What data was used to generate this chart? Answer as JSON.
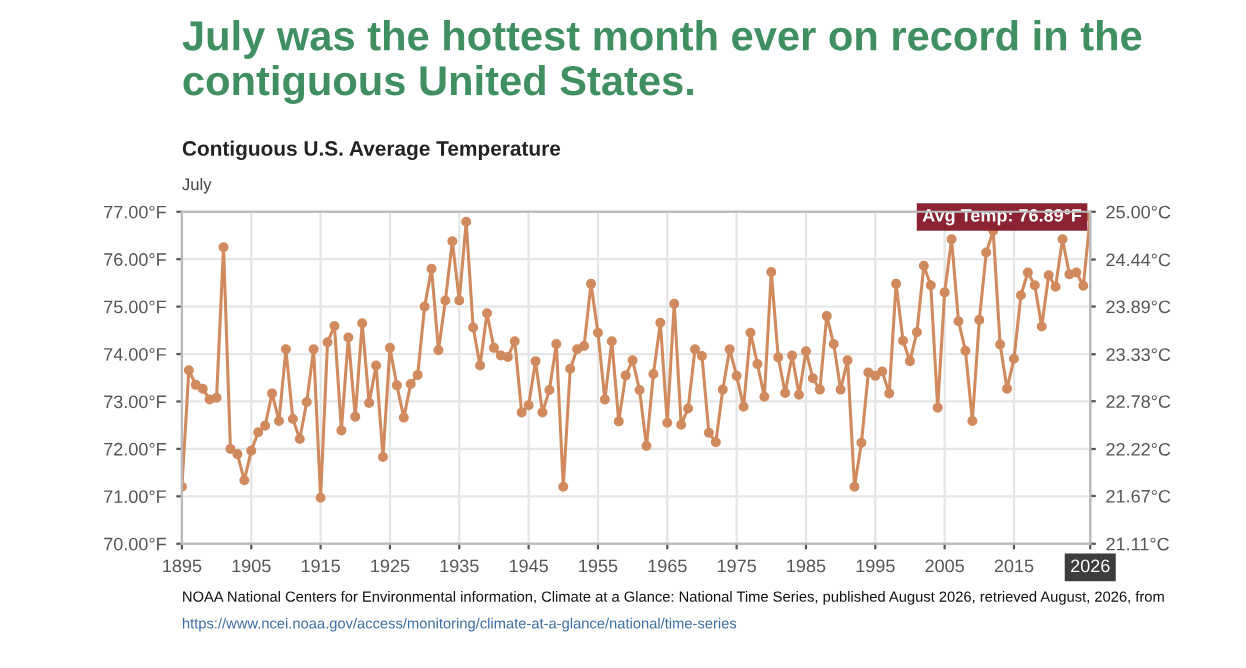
{
  "chart_data": {
    "type": "line",
    "title": "July was the hottest month ever on record in the contiguous United States.",
    "subtitle": "Contiguous U.S. Average Temperature",
    "x": [
      1895,
      1896,
      1897,
      1898,
      1899,
      1900,
      1901,
      1902,
      1903,
      1904,
      1905,
      1906,
      1907,
      1908,
      1909,
      1910,
      1911,
      1912,
      1913,
      1914,
      1915,
      1916,
      1917,
      1918,
      1919,
      1920,
      1921,
      1922,
      1923,
      1924,
      1925,
      1926,
      1927,
      1928,
      1929,
      1930,
      1931,
      1932,
      1933,
      1934,
      1935,
      1936,
      1937,
      1938,
      1939,
      1940,
      1941,
      1942,
      1943,
      1944,
      1945,
      1946,
      1947,
      1948,
      1949,
      1950,
      1951,
      1952,
      1953,
      1954,
      1955,
      1956,
      1957,
      1958,
      1959,
      1960,
      1961,
      1962,
      1963,
      1964,
      1965,
      1966,
      1967,
      1968,
      1969,
      1970,
      1971,
      1972,
      1973,
      1974,
      1975,
      1976,
      1977,
      1978,
      1979,
      1980,
      1981,
      1982,
      1983,
      1984,
      1985,
      1986,
      1987,
      1988,
      1989,
      1990,
      1991,
      1992,
      1993,
      1994,
      1995,
      1996,
      1997,
      1998,
      1999,
      2000,
      2001,
      2002,
      2003,
      2004,
      2005,
      2006,
      2007,
      2008,
      2009,
      2010,
      2011,
      2012,
      2013,
      2014,
      2015,
      2016,
      2017,
      2018,
      2019,
      2020,
      2021,
      2022,
      2023,
      2024,
      2025,
      2026
    ],
    "series": [
      {
        "color": "#d08a5e",
        "values": [
          71.2,
          73.66,
          73.35,
          73.27,
          73.04,
          73.08,
          76.25,
          72.0,
          71.89,
          71.34,
          71.96,
          72.35,
          72.49,
          73.17,
          72.59,
          74.1,
          72.63,
          72.21,
          72.99,
          74.1,
          70.97,
          74.25,
          74.59,
          72.39,
          74.35,
          72.68,
          74.65,
          72.97,
          73.76,
          71.83,
          74.13,
          73.34,
          72.66,
          73.37,
          73.56,
          75.0,
          75.8,
          74.08,
          75.13,
          76.38,
          75.13,
          76.79,
          74.56,
          73.76,
          74.86,
          74.13,
          73.97,
          73.94,
          74.27,
          72.77,
          72.92,
          73.85,
          72.77,
          73.24,
          74.21,
          71.2,
          73.69,
          74.1,
          74.17,
          75.48,
          74.45,
          73.04,
          74.27,
          72.58,
          73.55,
          73.87,
          73.24,
          72.06,
          73.58,
          74.66,
          72.55,
          75.06,
          72.51,
          72.85,
          74.1,
          73.96,
          72.34,
          72.14,
          73.25,
          74.1,
          73.54,
          72.89,
          74.45,
          73.79,
          73.1,
          75.73,
          73.93,
          73.18,
          73.97,
          73.14,
          74.06,
          73.49,
          73.25,
          74.8,
          74.21,
          73.25,
          73.87,
          71.2,
          72.13,
          73.61,
          73.54,
          73.63,
          73.17,
          75.48,
          74.28,
          73.85,
          74.46,
          75.86,
          75.45,
          72.87,
          75.3,
          76.42,
          74.69,
          74.07,
          72.59,
          74.72,
          76.14,
          76.6,
          74.2,
          73.27,
          73.9,
          75.24,
          75.72,
          75.45,
          74.58,
          75.66,
          75.42,
          76.42,
          75.68,
          75.72,
          75.44,
          76.89
        ]
      }
    ],
    "xlim": [
      1895,
      2026
    ],
    "xticks": [
      1895,
      1905,
      1915,
      1925,
      1935,
      1945,
      1955,
      1965,
      1975,
      1985,
      1995,
      2005,
      2015,
      2026
    ],
    "ylim": [
      70,
      77
    ],
    "yticks": [
      {
        "value": 70,
        "label": "70.00°F"
      },
      {
        "value": 71,
        "label": "71.00°F"
      },
      {
        "value": 72,
        "label": "72.00°F"
      },
      {
        "value": 73,
        "label": "73.00°F"
      },
      {
        "value": 74,
        "label": "74.00°F"
      },
      {
        "value": 75,
        "label": "75.00°F"
      },
      {
        "value": 76,
        "label": "76.00°F"
      },
      {
        "value": 77,
        "label": "77.00°F"
      }
    ],
    "y2lim": [
      21.11,
      25.0
    ],
    "y2ticks": [
      {
        "value": 21.11,
        "label": "21.11°C"
      },
      {
        "value": 21.67,
        "label": "21.67°C"
      },
      {
        "value": 22.22,
        "label": "22.22°C"
      },
      {
        "value": 22.78,
        "label": "22.78°C"
      },
      {
        "value": 23.33,
        "label": "23.33°C"
      },
      {
        "value": 23.89,
        "label": "23.89°C"
      },
      {
        "value": 24.44,
        "label": "24.44°C"
      },
      {
        "value": 25.0,
        "label": "25.00°C"
      }
    ],
    "grid": true,
    "marker": "circle",
    "line_style": "solid",
    "legend": false,
    "annotations": [
      "July",
      {
        "text": "Avg Temp: 76.89°F",
        "x": 2026,
        "y": 76.89
      },
      "NOAA National Centers for Environmental information, Climate at a Glance: National Time Series, published August 2026, retrieved August, 2026, from",
      "https://www.ncei.noaa.gov/access/monitoring/climate-at-a-glance/national/time-series"
    ]
  }
}
